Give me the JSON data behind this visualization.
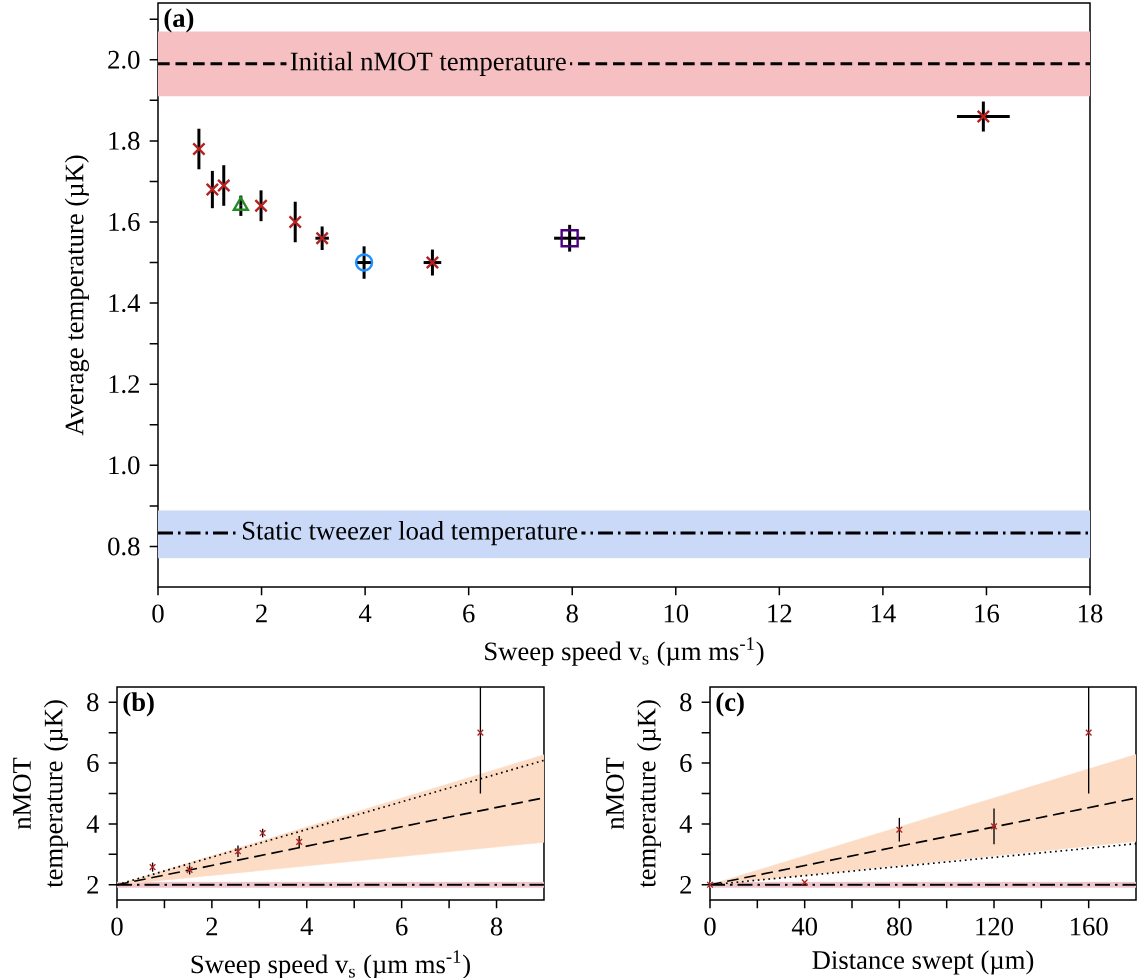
{
  "chart_data": [
    {
      "type": "scatter",
      "title": "(a)",
      "xlabel": "Sweep speed v$_{s}$ (µm ms$^{-1}$)",
      "ylabel": "Average temperature (µK)",
      "xlim": [
        0,
        18
      ],
      "xticks": [
        0,
        2,
        4,
        6,
        8,
        10,
        12,
        14,
        16,
        18
      ],
      "ylim": [
        0.7,
        2.14
      ],
      "yticks": [
        0.8,
        {
          "value": 0.9,
          "label": null
        },
        {
          "value": 1.0,
          "label": "1.0"
        },
        {
          "value": 1.1,
          "label": null
        },
        1.2,
        {
          "value": 1.3,
          "label": null
        },
        1.4,
        {
          "value": 1.5,
          "label": null
        },
        1.6,
        {
          "value": 1.7,
          "label": null
        },
        1.8,
        {
          "value": 1.9,
          "label": null
        },
        {
          "value": 2.0,
          "label": "2.0"
        },
        {
          "value": 2.1,
          "label": null
        }
      ],
      "series": [
        {
          "color": "#b22222",
          "marker": "cross",
          "x": [
            0.79,
            1.05,
            1.27,
            1.99,
            2.65,
            3.17,
            5.3,
            15.94
          ],
          "values": [
            1.78,
            1.68,
            1.69,
            1.64,
            1.6,
            1.56,
            1.5,
            1.86
          ],
          "errors": [
            0.05,
            0.046,
            0.05,
            0.038,
            0.05,
            0.029,
            0.032,
            0.037
          ],
          "xerrors": [
            null,
            null,
            null,
            null,
            null,
            0.13,
            0.17,
            0.51
          ]
        },
        {
          "color": "#228b22",
          "marker": "triangle",
          "x": [
            1.6
          ],
          "values": [
            1.64
          ],
          "errors": [
            0.025
          ]
        },
        {
          "color": "#1e90ff",
          "marker": "circle",
          "x": [
            3.98
          ],
          "values": [
            1.5
          ],
          "errors": [
            0.04
          ],
          "xerrors": [
            0.145
          ]
        },
        {
          "color": "#4b0082",
          "marker": "square",
          "x": [
            7.95
          ],
          "values": [
            1.56
          ],
          "errors": [
            0.033
          ],
          "xerrors": [
            0.3
          ]
        }
      ],
      "ref_lines": [
        {
          "axis": "y",
          "value": 1.99,
          "label": "Initial nMOT temperature",
          "line_style": "dashed"
        },
        {
          "axis": "y",
          "value": 0.833,
          "label": "Static tweezer load temperature",
          "line_style": "dashdot"
        }
      ],
      "bands": [
        {
          "axis": "y",
          "from": 1.91,
          "to": 2.07,
          "color": "#f6bfc1"
        },
        {
          "axis": "y",
          "from": 0.771,
          "to": 0.889,
          "color": "#c9d9f7"
        }
      ]
    },
    {
      "type": "scatter",
      "title": "(b)",
      "xlabel": "Sweep speed v$_{s}$ (µm ms$^{-1}$)",
      "ylabel": "nMOT temperature (µK)",
      "xlim": [
        0,
        9
      ],
      "xticks": [
        0,
        {
          "value": 1,
          "label": null
        },
        2,
        {
          "value": 3,
          "label": null
        },
        4,
        {
          "value": 5,
          "label": null
        },
        6,
        {
          "value": 7,
          "label": null
        },
        8
      ],
      "ylim": [
        1.5,
        8.5
      ],
      "yticks": [
        2,
        {
          "value": 3,
          "label": null
        },
        4,
        {
          "value": 5,
          "label": null
        },
        6,
        {
          "value": 7,
          "label": null
        },
        8
      ],
      "series": [
        {
          "type": "line",
          "color": "#000000",
          "line_style": "dashed",
          "x": [
            0,
            9
          ],
          "values": [
            2,
            4.86
          ],
          "lower": [
            2,
            3.4
          ],
          "upper": [
            2,
            6.27
          ]
        },
        {
          "type": "line",
          "color": "#000000",
          "line_style": "dotted",
          "x": [
            0,
            9
          ],
          "values": [
            2,
            6.09
          ]
        },
        {
          "color": "#b22222",
          "marker": "cross",
          "x": [
            0.75,
            1.53,
            2.55,
            3.07,
            3.84,
            7.66
          ],
          "values": [
            2.58,
            2.49,
            3.1,
            3.7,
            3.41,
            7.0
          ],
          "errors": [
            0.15,
            0.15,
            0.19,
            0.14,
            0.19,
            [
              5.0,
              8.5
            ]
          ]
        }
      ],
      "ref_lines": [
        {
          "axis": "y",
          "value": 2,
          "line_style": "dashdot"
        }
      ],
      "bands": [
        {
          "axis": "y",
          "from": 1.9,
          "to": 2.1,
          "color": "#efc6cb"
        }
      ]
    },
    {
      "type": "scatter",
      "title": "(c)",
      "xlabel": "Distance swept (µm)",
      "ylabel": "nMOT temperature (µK)",
      "xlim": [
        0,
        180
      ],
      "xticks": [
        0,
        {
          "value": 20,
          "label": null
        },
        40,
        {
          "value": 60,
          "label": null
        },
        80,
        {
          "value": 100,
          "label": null
        },
        120,
        {
          "value": 140,
          "label": null
        },
        160
      ],
      "ylim": [
        1.5,
        8.5
      ],
      "yticks": [
        2,
        {
          "value": 3,
          "label": null
        },
        4,
        {
          "value": 5,
          "label": null
        },
        6,
        {
          "value": 7,
          "label": null
        },
        8
      ],
      "series": [
        {
          "type": "line",
          "color": "#000000",
          "line_style": "dashed",
          "x": [
            0,
            180
          ],
          "values": [
            2,
            4.85
          ],
          "lower": [
            2,
            3.43
          ],
          "upper": [
            2,
            6.28
          ]
        },
        {
          "type": "line",
          "color": "#000000",
          "line_style": "dotted",
          "x": [
            0,
            180
          ],
          "values": [
            2,
            3.35
          ]
        },
        {
          "color": "#b22222",
          "marker": "cross",
          "x": [
            0,
            40,
            80,
            120,
            160
          ],
          "values": [
            2.0,
            2.08,
            3.81,
            3.92,
            7.0
          ],
          "errors": [
            null,
            null,
            0.39,
            0.59,
            [
              5.0,
              8.5
            ]
          ]
        }
      ],
      "ref_lines": [
        {
          "axis": "y",
          "value": 2,
          "line_style": "dashdot"
        }
      ],
      "bands": [
        {
          "axis": "y",
          "from": 1.9,
          "to": 2.1,
          "color": "#efc6cb"
        }
      ]
    }
  ]
}
